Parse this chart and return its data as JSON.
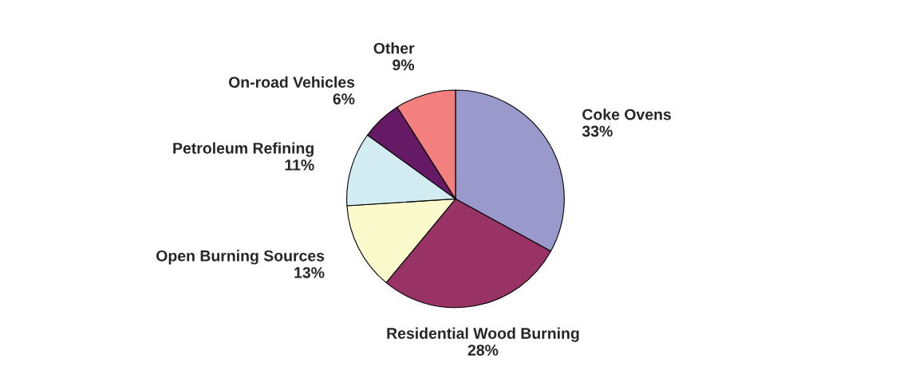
{
  "chart_data": {
    "type": "pie",
    "categories": [
      "Coke Ovens",
      "Residential Wood Burning",
      "Open Burning Sources",
      "Petroleum Refining",
      "On-road Vehicles",
      "Other"
    ],
    "values": [
      33,
      28,
      13,
      11,
      6,
      9
    ],
    "value_labels": [
      "33%",
      "28%",
      "13%",
      "11%",
      "6%",
      "9%"
    ],
    "colors": [
      "#9999cc",
      "#993366",
      "#fafacc",
      "#d2ecf2",
      "#661a66",
      "#f47f7f"
    ],
    "legend": false
  }
}
